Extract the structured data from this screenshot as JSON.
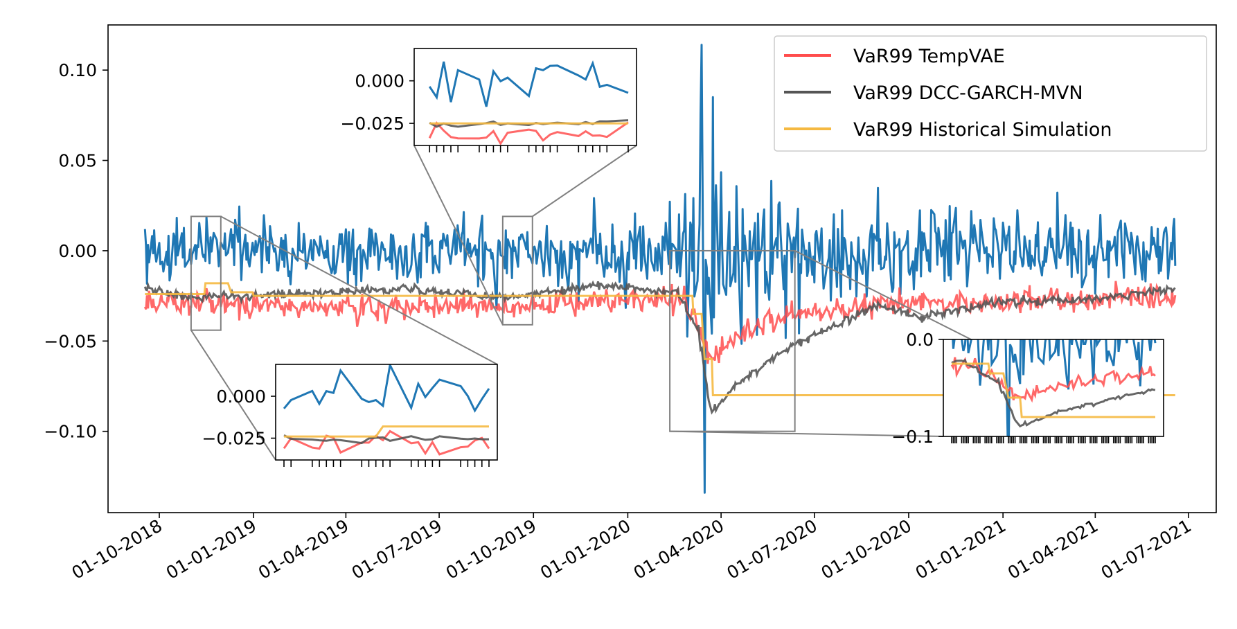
{
  "chart_data": {
    "type": "line",
    "title": "",
    "xlabel": "",
    "ylabel": "",
    "xlim": [
      "2018-08-12",
      "2021-07-28"
    ],
    "ylim": [
      -0.145,
      0.125
    ],
    "date_range": [
      "2018-09-17",
      "2021-06-18"
    ],
    "yticks": [
      0.1,
      0.05,
      0.0,
      -0.05,
      -0.1
    ],
    "ytick_labels": [
      "0.10",
      "0.05",
      "0.00",
      "−0.05",
      "−0.10"
    ],
    "xticks": [
      "2018-10-01",
      "2019-01-01",
      "2019-04-01",
      "2019-07-01",
      "2019-10-01",
      "2020-01-01",
      "2020-04-01",
      "2020-07-01",
      "2020-10-01",
      "2021-01-01",
      "2021-04-01",
      "2021-07-01"
    ],
    "xtick_labels": [
      "01-10-2018",
      "01-01-2019",
      "01-04-2019",
      "01-07-2019",
      "01-10-2019",
      "01-01-2020",
      "01-04-2020",
      "01-07-2020",
      "01-10-2020",
      "01-01-2021",
      "01-04-2021",
      "01-07-2021"
    ],
    "legend": {
      "position": "top-right",
      "entries": [
        "VaR99 TempVAE",
        "VaR99 DCC-GARCH-MVN",
        "VaR99 Historical Simulation"
      ]
    },
    "series": [
      {
        "name": "Returns",
        "color": "#1f77b4",
        "in_legend": false,
        "description": "daily portfolio returns, mostly within ±0.02, spikes to 0.114 and -0.134 in March 2020"
      },
      {
        "name": "VaR99 TempVAE",
        "color": "#ff4d4d",
        "anchors": [
          [
            "2018-09-17",
            -0.028
          ],
          [
            "2019-03-01",
            -0.032
          ],
          [
            "2019-09-01",
            -0.03
          ],
          [
            "2020-02-20",
            -0.026
          ],
          [
            "2020-03-05",
            -0.035
          ],
          [
            "2020-03-20",
            -0.06
          ],
          [
            "2020-04-15",
            -0.048
          ],
          [
            "2020-06-01",
            -0.036
          ],
          [
            "2020-09-01",
            -0.03
          ],
          [
            "2020-12-01",
            -0.028
          ],
          [
            "2021-03-01",
            -0.027
          ],
          [
            "2021-06-18",
            -0.025
          ]
        ]
      },
      {
        "name": "VaR99 DCC-GARCH-MVN",
        "color": "#555555",
        "anchors": [
          [
            "2018-09-17",
            -0.02
          ],
          [
            "2018-11-01",
            -0.026
          ],
          [
            "2019-06-01",
            -0.021
          ],
          [
            "2019-09-01",
            -0.026
          ],
          [
            "2019-12-01",
            -0.019
          ],
          [
            "2020-02-20",
            -0.024
          ],
          [
            "2020-03-10",
            -0.045
          ],
          [
            "2020-03-22",
            -0.09
          ],
          [
            "2020-04-15",
            -0.075
          ],
          [
            "2020-06-01",
            -0.055
          ],
          [
            "2020-09-01",
            -0.03
          ],
          [
            "2020-10-15",
            -0.037
          ],
          [
            "2021-01-01",
            -0.028
          ],
          [
            "2021-04-01",
            -0.027
          ],
          [
            "2021-06-18",
            -0.021
          ]
        ]
      },
      {
        "name": "VaR99 Historical Simulation",
        "color": "#f5b941",
        "steps": [
          [
            "2018-09-17",
            -0.024
          ],
          [
            "2018-11-15",
            -0.018
          ],
          [
            "2018-12-10",
            -0.023
          ],
          [
            "2019-01-01",
            -0.025
          ],
          [
            "2019-10-01",
            -0.025
          ],
          [
            "2020-03-05",
            -0.035
          ],
          [
            "2020-03-15",
            -0.06
          ],
          [
            "2020-03-24",
            -0.08
          ],
          [
            "2021-06-18",
            -0.08
          ]
        ]
      }
    ],
    "insets": [
      {
        "name": "inset-oct-2019",
        "region": {
          "x": [
            "2019-09-01",
            "2019-09-30"
          ],
          "y": [
            -0.041,
            0.019
          ]
        },
        "yticks": [
          0.0,
          -0.025
        ],
        "ytick_labels": [
          "0.000",
          "−0.025"
        ],
        "ylim": [
          -0.038,
          0.019
        ]
      },
      {
        "name": "inset-nov-2018",
        "region": {
          "x": [
            "2018-11-01",
            "2018-11-30"
          ],
          "y": [
            -0.044,
            0.019
          ]
        },
        "yticks": [
          0.0,
          -0.025
        ],
        "ytick_labels": [
          "0.000",
          "−0.025"
        ],
        "ylim": [
          -0.038,
          0.019
        ]
      },
      {
        "name": "inset-covid",
        "region": {
          "x": [
            "2020-02-11",
            "2020-06-12"
          ],
          "y": [
            -0.1,
            0.0
          ]
        },
        "yticks": [
          0.0,
          -0.1
        ],
        "ytick_labels": [
          "0.0",
          "−0.1"
        ],
        "ylim": [
          -0.1,
          0.0
        ]
      }
    ]
  }
}
